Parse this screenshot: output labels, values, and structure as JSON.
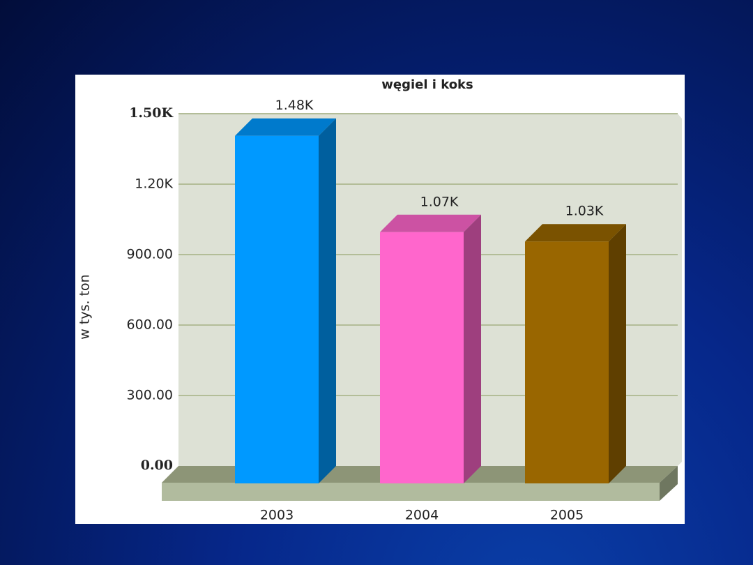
{
  "chart_data": {
    "type": "bar3d",
    "title": "węgiel i koks",
    "y_label": "w tys. ton",
    "categories": [
      "2003",
      "2004",
      "2005"
    ],
    "values": [
      1480,
      1070,
      1030
    ],
    "value_labels": [
      "1.48K",
      "1.07K",
      "1.03K"
    ],
    "colors": [
      "#0099ff",
      "#ff66cc",
      "#996600"
    ],
    "ylim": [
      0,
      1500
    ],
    "yticks": [
      {
        "value": 0,
        "label": "0.00"
      },
      {
        "value": 300,
        "label": "300.00"
      },
      {
        "value": 600,
        "label": "600.00"
      },
      {
        "value": 900,
        "label": "900.00"
      },
      {
        "value": 1200,
        "label": "1.20K"
      },
      {
        "value": 1500,
        "label": "1.50K"
      }
    ],
    "grid": true
  }
}
